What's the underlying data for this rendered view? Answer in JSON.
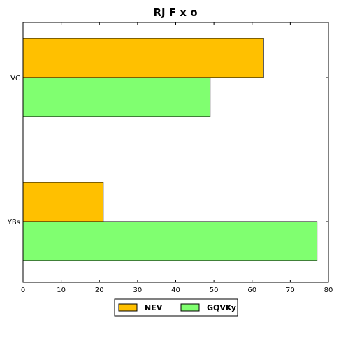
{
  "chart_data": {
    "type": "bar",
    "orientation": "horizontal",
    "title": "RJ F x o",
    "xlabel": "",
    "ylabel": "",
    "categories": [
      "VC",
      "YBs"
    ],
    "series": [
      {
        "name": "NEV",
        "values": [
          63,
          21
        ],
        "color": "#FFC000"
      },
      {
        "name": "GQVKy",
        "values": [
          49,
          77
        ],
        "color": "#80FF70"
      }
    ],
    "xlim": [
      0,
      80
    ],
    "xticks": [
      0,
      10,
      20,
      30,
      40,
      50,
      60,
      70,
      80
    ],
    "grid": false,
    "legend_position": "bottom-center"
  }
}
